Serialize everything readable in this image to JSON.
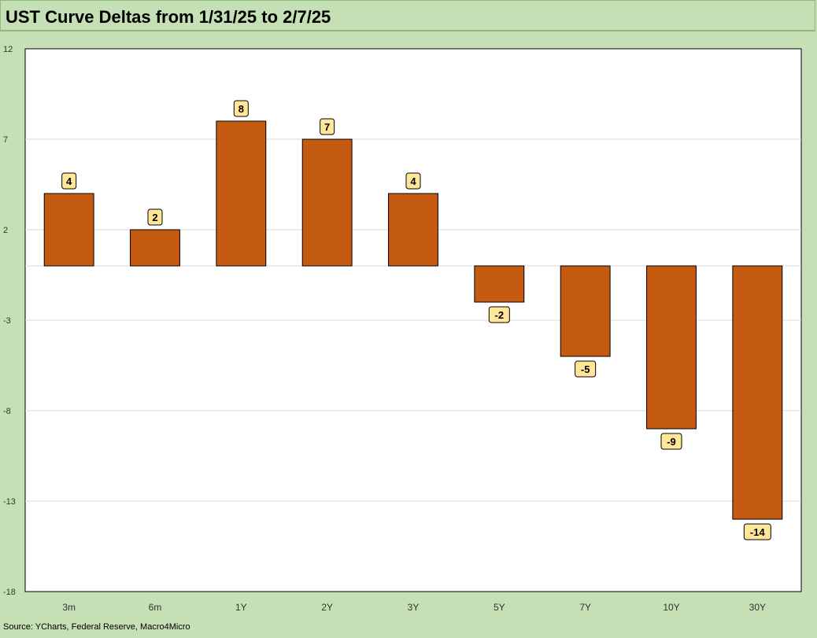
{
  "header": {
    "title": "UST Curve Deltas from 1/31/25 to 2/7/25"
  },
  "footer": {
    "source": "Source: YCharts, Federal Reserve, Macro4Micro"
  },
  "colors": {
    "background": "#c5e0b4",
    "plot_area": "#ffffff",
    "bar_fill": "#c55a11",
    "bar_stroke": "#000000",
    "label_fill": "#ffe699",
    "gridline": "#d9d9d9"
  },
  "chart_data": {
    "type": "bar",
    "title": "UST Curve Deltas from 1/31/25 to 2/7/25",
    "xlabel": "",
    "ylabel": "",
    "categories": [
      "3m",
      "6m",
      "1Y",
      "2Y",
      "3Y",
      "5Y",
      "7Y",
      "10Y",
      "30Y"
    ],
    "values": [
      4,
      2,
      8,
      7,
      4,
      -2,
      -5,
      -9,
      -14
    ],
    "data_labels": [
      "4",
      "2",
      "8",
      "7",
      "4",
      "-2",
      "-5",
      "-9",
      "-14"
    ],
    "ylim": [
      -18,
      12
    ],
    "yticks": [
      12,
      7,
      2,
      -3,
      -8,
      -13,
      -18
    ],
    "grid": true,
    "legend": "none"
  }
}
